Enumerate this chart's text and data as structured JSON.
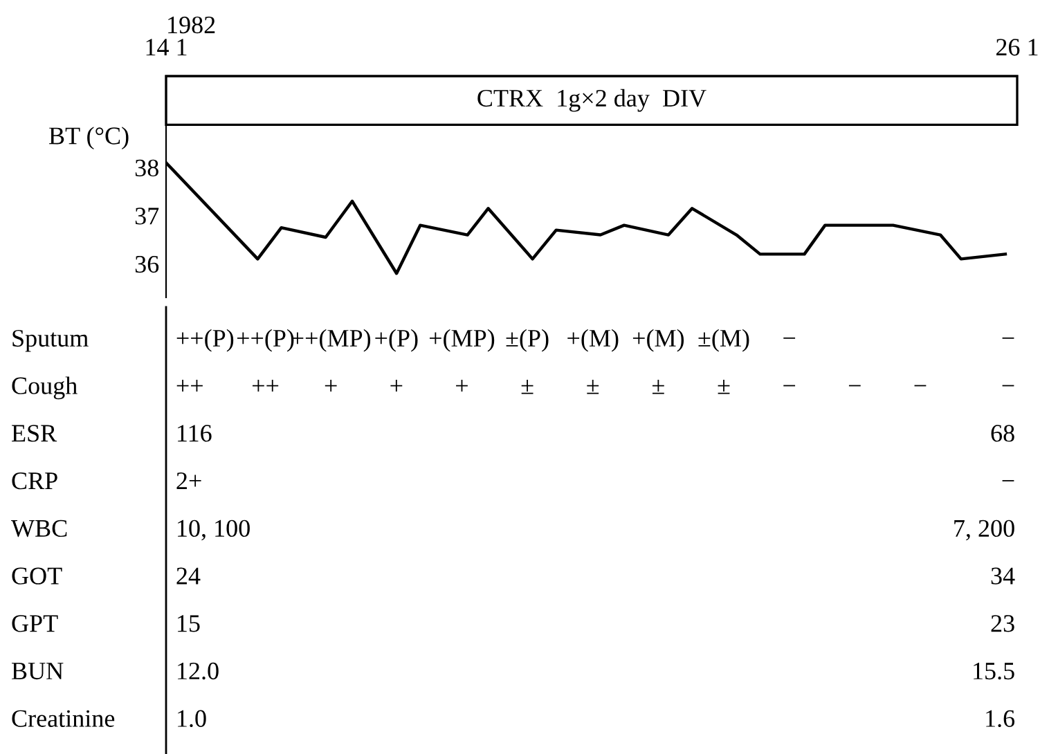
{
  "chart_data": [
    {
      "type": "line",
      "ylabel": "BT (°C)",
      "annotations": [
        "1982",
        "CTRX  1g×2 day  DIV"
      ],
      "x": [
        "1982-01-14T00:00",
        "1982-01-15T07:00",
        "1982-01-15T15:00",
        "1982-01-16T06:00",
        "1982-01-16T15:00",
        "1982-01-17T06:00",
        "1982-01-17T14:00",
        "1982-01-18T06:00",
        "1982-01-18T13:00",
        "1982-01-19T04:00",
        "1982-01-19T12:00",
        "1982-01-20T03:00",
        "1982-01-20T11:00",
        "1982-01-21T02:00",
        "1982-01-21T10:00",
        "1982-01-22T01:00",
        "1982-01-22T09:00",
        "1982-01-23T00:00",
        "1982-01-23T07:00",
        "1982-01-24T06:00",
        "1982-01-24T22:00",
        "1982-01-25T05:00",
        "1982-01-25T20:00"
      ],
      "series": [
        {
          "color": "#000000",
          "values": [
            38.1,
            36.1,
            36.75,
            36.55,
            37.3,
            35.8,
            36.8,
            36.6,
            37.15,
            36.1,
            36.7,
            36.6,
            36.8,
            36.6,
            37.15,
            36.6,
            36.2,
            36.2,
            36.8,
            36.8,
            36.6,
            36.1,
            36.2
          ]
        }
      ],
      "xlim": [
        "1982-01-14",
        "1982-01-26"
      ],
      "xticks": [
        {
          "value": "1982-01-14",
          "label": "14 1"
        },
        {
          "value": "1982-01-26",
          "label": "26 1"
        }
      ],
      "ylim": [
        35.3,
        39.9
      ],
      "yticks": [
        36,
        37,
        38
      ],
      "grid": false,
      "legend": false,
      "marker": "none",
      "line_style": "solid"
    },
    {
      "type": "other",
      "categories": [
        null,
        null,
        null,
        null,
        null,
        null,
        null,
        null,
        null,
        null,
        null,
        null,
        null
      ],
      "y_categories": [
        "Sputum",
        "Cough",
        "ESR",
        "CRP",
        "WBC",
        "GOT",
        "GPT",
        "BUN",
        "Creatinine"
      ],
      "cell_labels": [
        [
          "++(P)",
          "++(P)",
          "++(MP)",
          "+(P)",
          "+(MP)",
          "±(P)",
          "+(M)",
          "+(M)",
          "±(M)",
          "−",
          null,
          null,
          "−"
        ],
        [
          "++",
          "++",
          "+",
          "+",
          "+",
          "±",
          "±",
          "±",
          "±",
          "−",
          "−",
          "−",
          "−"
        ],
        [
          "116",
          null,
          null,
          null,
          null,
          null,
          null,
          null,
          null,
          null,
          null,
          null,
          "68"
        ],
        [
          "2+",
          null,
          null,
          null,
          null,
          null,
          null,
          null,
          null,
          null,
          null,
          null,
          "−"
        ],
        [
          "10, 100",
          null,
          null,
          null,
          null,
          null,
          null,
          null,
          null,
          null,
          null,
          null,
          "7, 200"
        ],
        [
          "24",
          null,
          null,
          null,
          null,
          null,
          null,
          null,
          null,
          null,
          null,
          null,
          "34"
        ],
        [
          "15",
          null,
          null,
          null,
          null,
          null,
          null,
          null,
          null,
          null,
          null,
          null,
          "23"
        ],
        [
          "12.0",
          null,
          null,
          null,
          null,
          null,
          null,
          null,
          null,
          null,
          null,
          null,
          "15.5"
        ],
        [
          "1.0",
          null,
          null,
          null,
          null,
          null,
          null,
          null,
          null,
          null,
          null,
          null,
          "1.6"
        ]
      ]
    }
  ]
}
